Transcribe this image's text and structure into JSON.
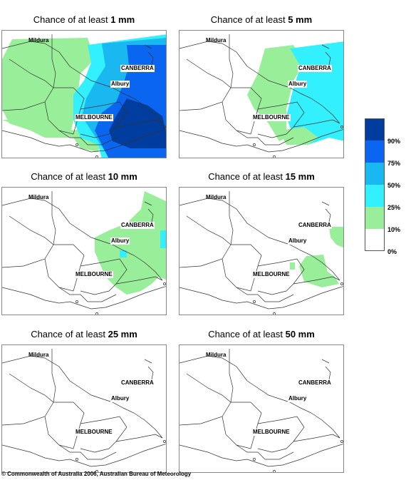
{
  "title_prefix": "Chance of at least",
  "panels": [
    {
      "amount": "1 mm"
    },
    {
      "amount": "5 mm"
    },
    {
      "amount": "10 mm"
    },
    {
      "amount": "15 mm"
    },
    {
      "amount": "25 mm"
    },
    {
      "amount": "50 mm"
    }
  ],
  "places": {
    "mildura": "Mildura",
    "canberra": "CANBERRA",
    "albury": "Albury",
    "melbourne": "MELBOURNE"
  },
  "legend": {
    "categories": [
      {
        "label": "90%",
        "color": "#003d9e"
      },
      {
        "label": "75%",
        "color": "#0a66f0"
      },
      {
        "label": "50%",
        "color": "#1ab8f0"
      },
      {
        "label": "25%",
        "color": "#33f0ff"
      },
      {
        "label": "10%",
        "color": "#99ee99"
      },
      {
        "label": "0%",
        "color": "#ffffff"
      }
    ]
  },
  "credit": "© Commonwealth of Australia 2006, Australian Bureau of Meteorology"
}
